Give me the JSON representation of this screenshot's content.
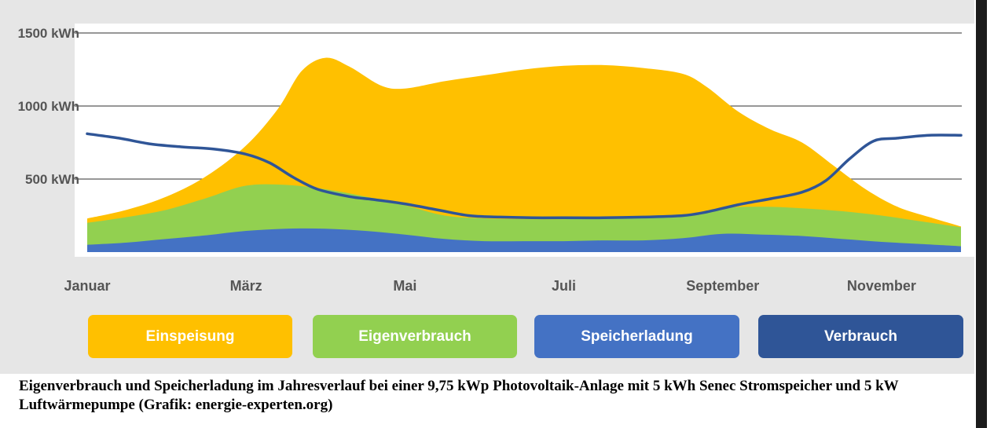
{
  "chart_data": {
    "type": "area",
    "title": "",
    "xlabel": "",
    "ylabel": "",
    "ylim": [
      0,
      1500
    ],
    "y_ticks": [
      {
        "value": 500,
        "label": "500 kWh"
      },
      {
        "value": 1000,
        "label": "1000 kWh"
      },
      {
        "value": 1500,
        "label": "1500 kWh"
      }
    ],
    "x_tick_labels": [
      "Januar",
      "März",
      "Mai",
      "Juli",
      "September",
      "November"
    ],
    "x_tick_months": [
      0,
      2,
      4,
      6,
      8,
      10
    ],
    "grid": true,
    "series": [
      {
        "name": "Einspeisung",
        "kind": "area",
        "color": "#FFC000",
        "points": [
          [
            0,
            230
          ],
          [
            0.5,
            290
          ],
          [
            1,
            380
          ],
          [
            1.5,
            520
          ],
          [
            2,
            730
          ],
          [
            2.4,
            980
          ],
          [
            2.7,
            1240
          ],
          [
            3.0,
            1330
          ],
          [
            3.3,
            1270
          ],
          [
            3.7,
            1140
          ],
          [
            4.0,
            1120
          ],
          [
            4.5,
            1170
          ],
          [
            5.0,
            1210
          ],
          [
            5.5,
            1250
          ],
          [
            6.0,
            1275
          ],
          [
            6.5,
            1280
          ],
          [
            7.0,
            1260
          ],
          [
            7.5,
            1220
          ],
          [
            7.8,
            1130
          ],
          [
            8.2,
            960
          ],
          [
            8.6,
            840
          ],
          [
            9.0,
            750
          ],
          [
            9.4,
            590
          ],
          [
            9.8,
            430
          ],
          [
            10.2,
            310
          ],
          [
            10.6,
            240
          ],
          [
            11,
            175
          ]
        ]
      },
      {
        "name": "Eigenverbrauch",
        "kind": "area",
        "color": "#92D050",
        "points": [
          [
            0,
            200
          ],
          [
            0.5,
            240
          ],
          [
            1,
            290
          ],
          [
            1.5,
            370
          ],
          [
            2,
            455
          ],
          [
            2.5,
            460
          ],
          [
            3,
            430
          ],
          [
            3.5,
            380
          ],
          [
            4,
            320
          ],
          [
            4.5,
            250
          ],
          [
            5,
            230
          ],
          [
            5.5,
            225
          ],
          [
            6,
            225
          ],
          [
            6.5,
            230
          ],
          [
            7,
            235
          ],
          [
            7.5,
            245
          ],
          [
            8,
            300
          ],
          [
            8.5,
            310
          ],
          [
            9,
            300
          ],
          [
            9.5,
            280
          ],
          [
            10,
            250
          ],
          [
            10.5,
            210
          ],
          [
            11,
            170
          ]
        ]
      },
      {
        "name": "Speicherladung",
        "kind": "area",
        "color": "#4472C4",
        "points": [
          [
            0,
            50
          ],
          [
            0.5,
            65
          ],
          [
            1,
            90
          ],
          [
            1.5,
            115
          ],
          [
            2,
            145
          ],
          [
            2.5,
            160
          ],
          [
            3,
            160
          ],
          [
            3.5,
            145
          ],
          [
            4,
            120
          ],
          [
            4.5,
            90
          ],
          [
            5,
            75
          ],
          [
            5.5,
            75
          ],
          [
            6,
            75
          ],
          [
            6.5,
            80
          ],
          [
            7,
            80
          ],
          [
            7.5,
            95
          ],
          [
            8,
            125
          ],
          [
            8.5,
            120
          ],
          [
            9,
            110
          ],
          [
            9.5,
            90
          ],
          [
            10,
            70
          ],
          [
            10.5,
            55
          ],
          [
            11,
            40
          ]
        ]
      },
      {
        "name": "Verbrauch",
        "kind": "line",
        "color": "#2F5597",
        "points": [
          [
            0,
            810
          ],
          [
            0.4,
            780
          ],
          [
            0.8,
            740
          ],
          [
            1.2,
            720
          ],
          [
            1.6,
            705
          ],
          [
            2,
            670
          ],
          [
            2.3,
            610
          ],
          [
            2.6,
            510
          ],
          [
            2.9,
            430
          ],
          [
            3.3,
            380
          ],
          [
            3.6,
            360
          ],
          [
            4,
            330
          ],
          [
            4.4,
            290
          ],
          [
            4.8,
            250
          ],
          [
            5.2,
            240
          ],
          [
            5.6,
            235
          ],
          [
            6,
            235
          ],
          [
            6.5,
            235
          ],
          [
            7,
            240
          ],
          [
            7.5,
            250
          ],
          [
            7.8,
            275
          ],
          [
            8.2,
            325
          ],
          [
            8.6,
            365
          ],
          [
            9.0,
            410
          ],
          [
            9.3,
            490
          ],
          [
            9.6,
            640
          ],
          [
            9.9,
            760
          ],
          [
            10.2,
            780
          ],
          [
            10.6,
            800
          ],
          [
            11,
            800
          ]
        ]
      }
    ]
  },
  "legend": {
    "einspeisung": {
      "label": "Einspeisung",
      "color": "#FFC000"
    },
    "eigenverbrauch": {
      "label": "Eigenverbrauch",
      "color": "#92D050"
    },
    "speicherladung": {
      "label": "Speicherladung",
      "color": "#4472C4"
    },
    "verbrauch": {
      "label": "Verbrauch",
      "color": "#2F5597"
    }
  },
  "caption": "Eigenverbrauch und Speicherladung im Jahresverlauf bei einer 9,75 kWp Photovoltaik-Anlage mit 5 kWh Senec Stromspeicher und 5 kW Luftwärmepumpe (Grafik: energie-experten.org)"
}
